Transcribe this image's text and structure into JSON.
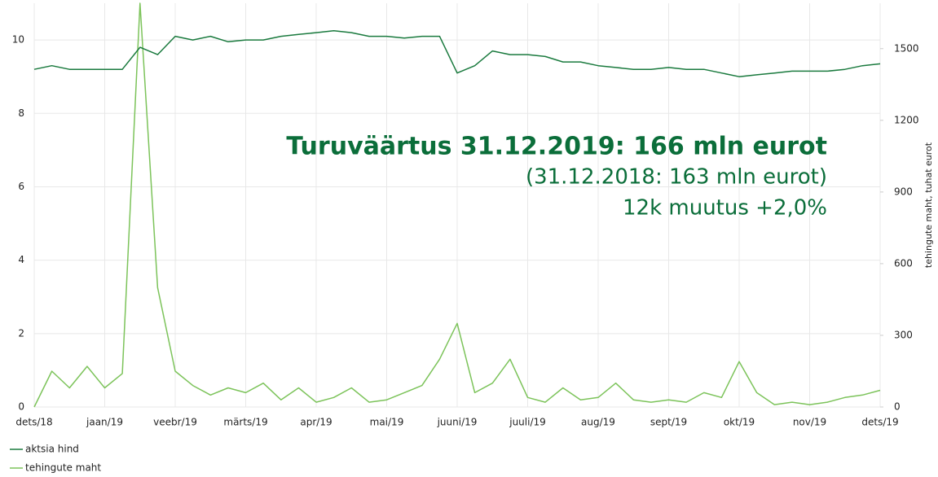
{
  "chart_data": {
    "type": "line",
    "y2label": "tehingute maht, tuhat eurot",
    "annotations": [
      "Turuväärtus 31.12.2019: 166 mln eurot",
      "(31.12.2018: 163 mln eurot)",
      "12k muutus +2,0%"
    ],
    "categories": [
      "dets/18",
      null,
      null,
      null,
      "jaan/19",
      null,
      null,
      null,
      "veebr/19",
      null,
      null,
      null,
      "märts/19",
      null,
      null,
      null,
      "apr/19",
      null,
      null,
      null,
      "mai/19",
      null,
      null,
      null,
      "juuni/19",
      null,
      null,
      null,
      "juuli/19",
      null,
      null,
      null,
      "aug/19",
      null,
      null,
      null,
      "sept/19",
      null,
      null,
      null,
      "okt/19",
      null,
      null,
      null,
      "nov/19",
      null,
      null,
      null,
      "dets/19"
    ],
    "series": [
      {
        "name": "aktsia hind",
        "color": "#1a7a3e",
        "axis": "y",
        "values": [
          9.2,
          9.3,
          9.2,
          9.2,
          9.2,
          9.2,
          9.8,
          9.6,
          10.1,
          10.0,
          10.1,
          9.95,
          10.0,
          10.0,
          10.1,
          10.15,
          10.2,
          10.25,
          10.2,
          10.1,
          10.1,
          10.05,
          10.1,
          10.1,
          9.1,
          9.3,
          9.7,
          9.6,
          9.6,
          9.55,
          9.4,
          9.4,
          9.3,
          9.25,
          9.2,
          9.2,
          9.25,
          9.2,
          9.2,
          9.1,
          9.0,
          9.05,
          9.1,
          9.15,
          9.15,
          9.15,
          9.2,
          9.3,
          9.35
        ]
      },
      {
        "name": "tehingute maht",
        "color": "#7cc35a",
        "axis": "y2",
        "values": [
          0,
          150,
          80,
          170,
          80,
          140,
          1690,
          500,
          150,
          90,
          50,
          80,
          60,
          100,
          30,
          80,
          20,
          40,
          80,
          20,
          30,
          60,
          90,
          200,
          350,
          60,
          100,
          200,
          40,
          20,
          80,
          30,
          40,
          100,
          30,
          20,
          30,
          20,
          60,
          40,
          190,
          60,
          10,
          20,
          10,
          20,
          40,
          50,
          70
        ]
      }
    ],
    "ylim": [
      0,
      11
    ],
    "yticks": [
      0,
      2,
      4,
      6,
      8,
      10
    ],
    "y2lim": [
      0,
      1690
    ],
    "y2ticks": [
      0,
      300,
      600,
      900,
      1200,
      1500
    ],
    "grid": true
  }
}
